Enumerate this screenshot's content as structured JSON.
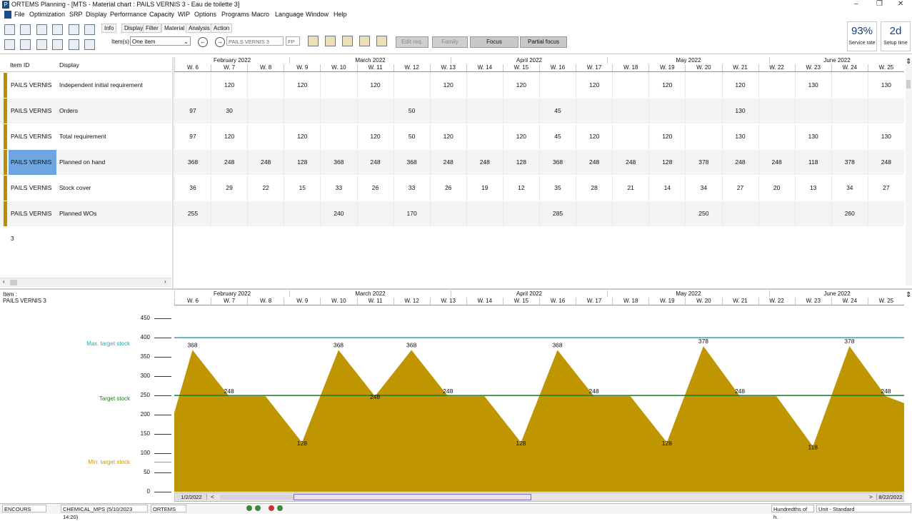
{
  "window": {
    "app_icon": "P",
    "title": "ORTEMS  Planning - [MTS - Material chart : PAILS VERNIS 3 - Eau de toilette 3]",
    "minimize": "–",
    "restore": "❐",
    "close": "✕"
  },
  "menubar": [
    "File",
    "Optimization",
    "SRP",
    "Display",
    "Performance",
    "Capacity",
    "WIP",
    "Options",
    "Programs",
    "Macro",
    "Language",
    "Window",
    "Help"
  ],
  "toolbar": {
    "tabs": [
      "Info",
      "Display",
      "Filter",
      "Material",
      "Analysis",
      "Action"
    ],
    "active_tab": "Material",
    "items_label": "Item(s)",
    "items_select": "One item",
    "item_field": "PAILS VERNIS 3",
    "item_code": "FP",
    "buttons": {
      "edit_req": "Edit req.",
      "family": "Family",
      "focus": "Focus",
      "partial_focus": "Partial focus"
    },
    "kpi": [
      {
        "value": "93%",
        "label": "Service rate"
      },
      {
        "value": "2d",
        "label": "Setup time"
      }
    ]
  },
  "grid": {
    "col_item_id": "Item ID",
    "col_display": "Display",
    "months": [
      "February 2022",
      "March 2022",
      "April 2022",
      "May 2022",
      "June 2022"
    ],
    "weeks": [
      "W. 6",
      "W. 7",
      "W. 8",
      "W. 9",
      "W. 10",
      "W. 11",
      "W. 12",
      "W. 13",
      "W. 14",
      "W. 15",
      "W. 16",
      "W. 17",
      "W. 18",
      "W. 19",
      "W. 20",
      "W. 21",
      "W. 22",
      "W. 23",
      "W. 24",
      "W. 25"
    ],
    "rows": [
      {
        "item": "PAILS VERNIS 3",
        "display": "Independent initial requirement",
        "values": [
          "",
          "120",
          "",
          "120",
          "",
          "120",
          "",
          "120",
          "",
          "120",
          "",
          "120",
          "",
          "120",
          "",
          "120",
          "",
          "130",
          "",
          "130"
        ]
      },
      {
        "item": "PAILS VERNIS 3",
        "display": "Orders",
        "values": [
          "97",
          "30",
          "",
          "",
          "",
          "",
          "50",
          "",
          "",
          "",
          "45",
          "",
          "",
          "",
          "",
          "130",
          "",
          "",
          "",
          ""
        ]
      },
      {
        "item": "PAILS VERNIS 3",
        "display": "Total requirement",
        "values": [
          "97",
          "120",
          "",
          "120",
          "",
          "120",
          "50",
          "120",
          "",
          "120",
          "45",
          "120",
          "",
          "120",
          "",
          "130",
          "",
          "130",
          "",
          "130"
        ]
      },
      {
        "item": "PAILS VERNIS 3",
        "display": "Planned on hand",
        "values": [
          "368",
          "248",
          "248",
          "128",
          "368",
          "248",
          "368",
          "248",
          "248",
          "128",
          "368",
          "248",
          "248",
          "128",
          "378",
          "248",
          "248",
          "118",
          "378",
          "248"
        ]
      },
      {
        "item": "PAILS VERNIS 3",
        "display": "Stock cover",
        "values": [
          "36",
          "29",
          "22",
          "15",
          "33",
          "26",
          "33",
          "26",
          "19",
          "12",
          "35",
          "28",
          "21",
          "14",
          "34",
          "27",
          "20",
          "13",
          "34",
          "27"
        ]
      },
      {
        "item": "PAILS VERNIS 3",
        "display": "Planned WOs",
        "values": [
          "255",
          "",
          "",
          "",
          "240",
          "",
          "170",
          "",
          "",
          "",
          "285",
          "",
          "",
          "",
          "250",
          "",
          "",
          "",
          "260",
          ""
        ]
      }
    ]
  },
  "chart_panel": {
    "item_label": "Item :",
    "item_name": "PAILS VERNIS 3",
    "max_label": "Max. target stock",
    "target_label": "Target stock",
    "min_label": "Min. target stock",
    "colors": {
      "max": "#2aa7b0",
      "target": "#1f7a1f",
      "min": "#c79a00",
      "area": "#bf9500"
    }
  },
  "chart_data": {
    "type": "area",
    "categories": [
      "W. 6",
      "W. 7",
      "W. 8",
      "W. 9",
      "W. 10",
      "W. 11",
      "W. 12",
      "W. 13",
      "W. 14",
      "W. 15",
      "W. 16",
      "W. 17",
      "W. 18",
      "W. 19",
      "W. 20",
      "W. 21",
      "W. 22",
      "W. 23",
      "W. 24",
      "W. 25"
    ],
    "values": [
      368,
      248,
      248,
      128,
      368,
      248,
      368,
      248,
      248,
      128,
      368,
      248,
      248,
      128,
      378,
      248,
      248,
      118,
      378,
      248
    ],
    "yticks": [
      0,
      50,
      100,
      150,
      200,
      250,
      300,
      350,
      400,
      450
    ],
    "ylim": [
      0,
      480
    ],
    "max_target": 400,
    "target": 250,
    "min_target": 80,
    "grid": false
  },
  "timeline": {
    "start": "1/2/2022",
    "end": "8/22/2022",
    "prev": "<",
    "next": ">"
  },
  "statusbar": {
    "status": "ENCOURS",
    "schedule": "CHEMICAL_MPS (5/10/2023 14:20)",
    "user": "ORTEMS",
    "units_hint": "Hundredths of h.",
    "unit_select": "Unit - Standard"
  }
}
